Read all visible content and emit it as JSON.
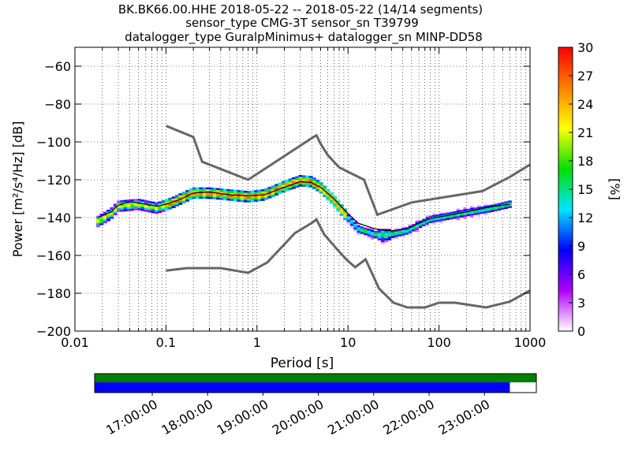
{
  "title": {
    "line1": "BK.BK66.00.HHE   2018-05-22 -- 2018-05-22  (14/14 segments)",
    "line2": "sensor_type CMG-3T sensor_sn T39799",
    "line3": "datalogger_type GuralpMinimus+ datalogger_sn MINP-DD58"
  },
  "chart_data": [
    {
      "type": "heatmap",
      "xlabel": "Period [s]",
      "ylabel": "Power [m²/s⁴/Hz] [dB]",
      "xscale": "log",
      "xlim": [
        0.01,
        1000
      ],
      "ylim": [
        -200,
        -50
      ],
      "x_ticks": [
        "0.01",
        "0.1",
        "1",
        "10",
        "100",
        "1000"
      ],
      "y_ticks": [
        "−60",
        "−80",
        "−100",
        "−120",
        "−140",
        "−160",
        "−180",
        "−200"
      ],
      "grid": true,
      "colorbar": {
        "label": "[%]",
        "range": [
          0,
          30
        ],
        "ticks": [
          "0",
          "3",
          "6",
          "9",
          "12",
          "15",
          "18",
          "21",
          "24",
          "27",
          "30"
        ],
        "colors": [
          "#ffffff",
          "#b000ff",
          "#0000ff",
          "#00e5ff",
          "#00e000",
          "#ffff00",
          "#ff8000",
          "#ff0000"
        ]
      },
      "noise_model_high": [
        [
          0.1,
          -91.5
        ],
        [
          0.2,
          -97.4
        ],
        [
          0.25,
          -110.5
        ],
        [
          0.8,
          -120
        ],
        [
          4,
          -98
        ],
        [
          4.5,
          -96.5
        ],
        [
          5,
          -101
        ],
        [
          6,
          -107
        ],
        [
          8,
          -113.5
        ],
        [
          15,
          -120
        ],
        [
          21,
          -138.5
        ],
        [
          50,
          -132
        ],
        [
          300,
          -126
        ],
        [
          600,
          -118.5
        ],
        [
          1000,
          -112
        ]
      ],
      "noise_model_low": [
        [
          0.1,
          -168
        ],
        [
          0.17,
          -166.7
        ],
        [
          0.4,
          -166.7
        ],
        [
          0.8,
          -169.2
        ],
        [
          1.3,
          -163.7
        ],
        [
          2.6,
          -148.3
        ],
        [
          4.1,
          -142.5
        ],
        [
          4.5,
          -141
        ],
        [
          5.5,
          -149
        ],
        [
          8,
          -158
        ],
        [
          10,
          -163
        ],
        [
          12,
          -166.2
        ],
        [
          15.6,
          -162.1
        ],
        [
          21.9,
          -177.5
        ],
        [
          31.6,
          -185
        ],
        [
          45,
          -187.5
        ],
        [
          70,
          -187.5
        ],
        [
          100,
          -185
        ],
        [
          150,
          -185
        ],
        [
          330,
          -187.5
        ],
        [
          600,
          -184.4
        ],
        [
          1000,
          -178.5
        ]
      ],
      "mean_psd": [
        [
          0.018,
          -140
        ],
        [
          0.02,
          -139
        ],
        [
          0.025,
          -137
        ],
        [
          0.03,
          -133.5
        ],
        [
          0.04,
          -131.5
        ],
        [
          0.06,
          -133
        ],
        [
          0.08,
          -134
        ],
        [
          0.1,
          -133
        ],
        [
          0.15,
          -130
        ],
        [
          0.2,
          -127
        ],
        [
          0.3,
          -126.5
        ],
        [
          0.5,
          -128
        ],
        [
          0.8,
          -128.5
        ],
        [
          1.2,
          -128
        ],
        [
          2,
          -124
        ],
        [
          3,
          -121
        ],
        [
          4,
          -121.5
        ],
        [
          5,
          -124
        ],
        [
          7,
          -130
        ],
        [
          10,
          -138
        ],
        [
          13,
          -143
        ],
        [
          20,
          -146
        ],
        [
          30,
          -147
        ],
        [
          45,
          -146
        ],
        [
          60,
          -143
        ],
        [
          80,
          -140.5
        ],
        [
          120,
          -139
        ],
        [
          200,
          -137
        ],
        [
          400,
          -134
        ],
        [
          600,
          -133
        ]
      ],
      "mode_psd": [
        [
          0.018,
          -142
        ],
        [
          0.025,
          -138
        ],
        [
          0.03,
          -134
        ],
        [
          0.05,
          -133
        ],
        [
          0.08,
          -135
        ],
        [
          0.12,
          -132
        ],
        [
          0.2,
          -127
        ],
        [
          0.3,
          -127
        ],
        [
          0.5,
          -128
        ],
        [
          0.8,
          -129
        ],
        [
          1.2,
          -128
        ],
        [
          2,
          -123.5
        ],
        [
          3,
          -120.5
        ],
        [
          4,
          -121
        ],
        [
          5,
          -124
        ],
        [
          7,
          -131
        ],
        [
          10,
          -140
        ],
        [
          13,
          -146
        ],
        [
          20,
          -149
        ],
        [
          30,
          -149
        ],
        [
          45,
          -147
        ],
        [
          60,
          -144
        ],
        [
          80,
          -141
        ],
        [
          120,
          -139.5
        ],
        [
          200,
          -137.5
        ],
        [
          400,
          -135
        ],
        [
          600,
          -133
        ]
      ],
      "peak_band": [
        [
          0.018,
          -142
        ],
        [
          0.025,
          -138
        ],
        [
          0.03,
          -134.5
        ],
        [
          0.05,
          -133
        ],
        [
          0.08,
          -134
        ],
        [
          0.12,
          -131
        ],
        [
          0.2,
          -126.5
        ],
        [
          0.3,
          -126.5
        ],
        [
          0.5,
          -127.5
        ],
        [
          0.8,
          -128.5
        ],
        [
          1.2,
          -127.5
        ],
        [
          2,
          -123
        ],
        [
          3,
          -120
        ],
        [
          4,
          -120.5
        ],
        [
          5,
          -123.5
        ],
        [
          7,
          -130
        ],
        [
          10,
          -138
        ]
      ],
      "spread_band": [
        [
          10,
          -141
        ],
        [
          13,
          -147
        ],
        [
          20,
          -151
        ],
        [
          25,
          -154
        ],
        [
          30,
          -152
        ],
        [
          45,
          -148
        ],
        [
          60,
          -145
        ],
        [
          80,
          -141
        ],
        [
          120,
          -139
        ],
        [
          200,
          -137
        ],
        [
          400,
          -134
        ],
        [
          600,
          -131
        ]
      ]
    },
    {
      "type": "bar",
      "x_ticks": [
        "17:00:00",
        "18:00:00",
        "19:00:00",
        "20:00:00",
        "21:00:00",
        "22:00:00",
        "23:00:00"
      ],
      "segments_available": 1.0,
      "segments_used": 0.94,
      "colors": {
        "available": "#008000",
        "used": "#0000ff"
      }
    }
  ]
}
